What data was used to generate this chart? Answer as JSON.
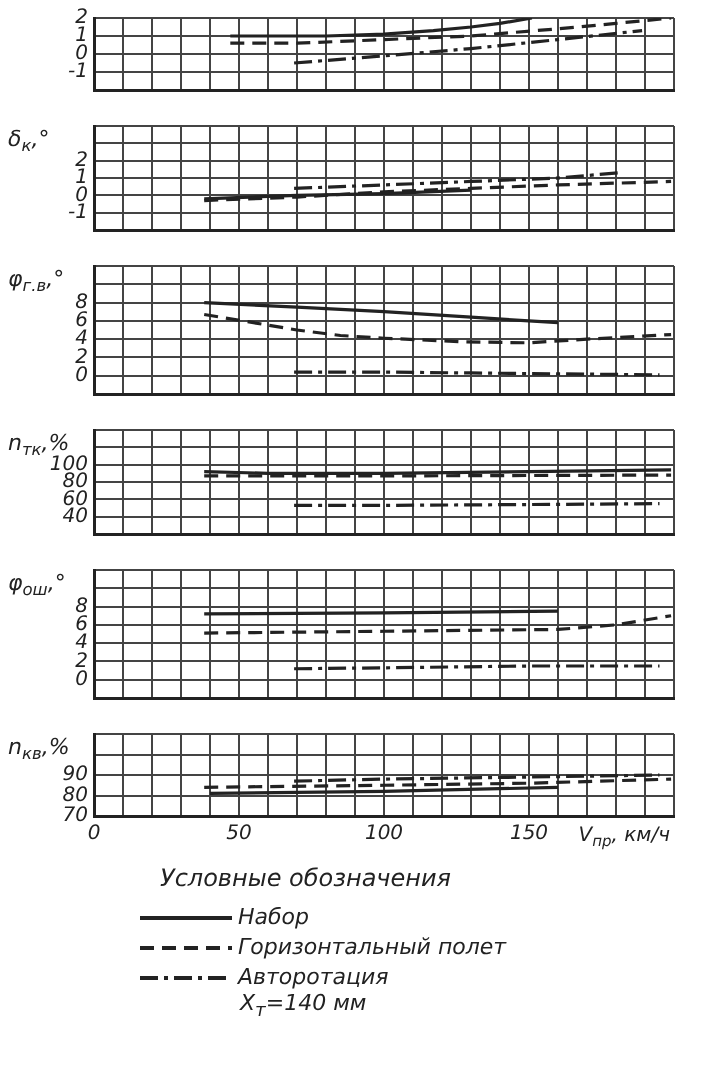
{
  "chart_data": [
    {
      "type": "line",
      "xlim": [
        0,
        200
      ],
      "xticks": [
        0,
        {
          "value": 10,
          "label": null
        },
        {
          "value": 20,
          "label": null
        },
        {
          "value": 30,
          "label": null
        },
        {
          "value": 40,
          "label": null
        },
        50,
        {
          "value": 60,
          "label": null
        },
        {
          "value": 70,
          "label": null
        },
        {
          "value": 80,
          "label": null
        },
        {
          "value": 90,
          "label": null
        },
        100,
        {
          "value": 110,
          "label": null
        },
        {
          "value": 120,
          "label": null
        },
        {
          "value": 130,
          "label": null
        },
        {
          "value": 140,
          "label": null
        },
        150,
        {
          "value": 160,
          "label": null
        },
        {
          "value": 170,
          "label": null
        },
        {
          "value": 180,
          "label": null
        },
        {
          "value": 190,
          "label": null
        },
        {
          "value": 200,
          "label": null
        }
      ],
      "ylim": [
        -2,
        2
      ],
      "yticks": [
        {
          "value": -2,
          "label": null
        },
        -1,
        0,
        1,
        2
      ],
      "grid": true,
      "legend": false,
      "marker": "none",
      "tick_labels": "y",
      "series": [
        {
          "color": "#222222",
          "line_style": "solid",
          "x": [
            47,
            60,
            80,
            100,
            117,
            130,
            140,
            151
          ],
          "values": [
            1.0,
            1.0,
            1.0,
            1.1,
            1.3,
            1.5,
            1.7,
            2.0
          ]
        },
        {
          "color": "#222222",
          "line_style": "dashed",
          "x": [
            47,
            70,
            100,
            130,
            160,
            180,
            199
          ],
          "values": [
            0.6,
            0.6,
            0.8,
            1.0,
            1.4,
            1.7,
            2.0
          ]
        },
        {
          "color": "#222222",
          "line_style": "dashdot",
          "x": [
            69,
            100,
            130,
            160,
            189
          ],
          "values": [
            -0.5,
            -0.1,
            0.3,
            0.8,
            1.3
          ]
        }
      ]
    },
    {
      "type": "line",
      "ylabel": "δ$_{к}$,°",
      "xlim": [
        0,
        200
      ],
      "xticks": [
        0,
        {
          "value": 10,
          "label": null
        },
        {
          "value": 20,
          "label": null
        },
        {
          "value": 30,
          "label": null
        },
        {
          "value": 40,
          "label": null
        },
        50,
        {
          "value": 60,
          "label": null
        },
        {
          "value": 70,
          "label": null
        },
        {
          "value": 80,
          "label": null
        },
        {
          "value": 90,
          "label": null
        },
        100,
        {
          "value": 110,
          "label": null
        },
        {
          "value": 120,
          "label": null
        },
        {
          "value": 130,
          "label": null
        },
        {
          "value": 140,
          "label": null
        },
        150,
        {
          "value": 160,
          "label": null
        },
        {
          "value": 170,
          "label": null
        },
        {
          "value": 180,
          "label": null
        },
        {
          "value": 190,
          "label": null
        },
        {
          "value": 200,
          "label": null
        }
      ],
      "ylim": [
        -2,
        4
      ],
      "yticks": [
        {
          "value": -2,
          "label": null
        },
        -1,
        0,
        1,
        2,
        {
          "value": 3,
          "label": null
        },
        {
          "value": 4,
          "label": null
        }
      ],
      "grid": true,
      "legend": false,
      "marker": "none",
      "tick_labels": "y",
      "series": [
        {
          "color": "#222222",
          "line_style": "solid",
          "x": [
            38,
            70,
            100,
            130
          ],
          "values": [
            -0.2,
            0.0,
            0.1,
            0.3
          ]
        },
        {
          "color": "#222222",
          "line_style": "dashed",
          "x": [
            38,
            70,
            100,
            130,
            160,
            199
          ],
          "values": [
            -0.3,
            -0.1,
            0.2,
            0.4,
            0.6,
            0.8
          ]
        },
        {
          "color": "#222222",
          "line_style": "dashdot",
          "x": [
            69,
            100,
            130,
            160,
            181
          ],
          "values": [
            0.4,
            0.6,
            0.8,
            1.0,
            1.3
          ]
        }
      ]
    },
    {
      "type": "line",
      "ylabel": "φ$_{г.в}$,°",
      "xlim": [
        0,
        200
      ],
      "xticks": [
        0,
        {
          "value": 10,
          "label": null
        },
        {
          "value": 20,
          "label": null
        },
        {
          "value": 30,
          "label": null
        },
        {
          "value": 40,
          "label": null
        },
        50,
        {
          "value": 60,
          "label": null
        },
        {
          "value": 70,
          "label": null
        },
        {
          "value": 80,
          "label": null
        },
        {
          "value": 90,
          "label": null
        },
        100,
        {
          "value": 110,
          "label": null
        },
        {
          "value": 120,
          "label": null
        },
        {
          "value": 130,
          "label": null
        },
        {
          "value": 140,
          "label": null
        },
        150,
        {
          "value": 160,
          "label": null
        },
        {
          "value": 170,
          "label": null
        },
        {
          "value": 180,
          "label": null
        },
        {
          "value": 190,
          "label": null
        },
        {
          "value": 200,
          "label": null
        }
      ],
      "ylim": [
        -2,
        12
      ],
      "yticks": [
        {
          "value": -2,
          "label": null
        },
        0,
        2,
        4,
        6,
        8,
        {
          "value": 10,
          "label": null
        },
        {
          "value": 12,
          "label": null
        }
      ],
      "grid": true,
      "legend": false,
      "marker": "none",
      "tick_labels": "y",
      "series": [
        {
          "color": "#222222",
          "line_style": "solid",
          "x": [
            38,
            70,
            100,
            130,
            160
          ],
          "values": [
            8.0,
            7.5,
            7.0,
            6.4,
            5.8
          ]
        },
        {
          "color": "#222222",
          "line_style": "dashed",
          "x": [
            38,
            55,
            70,
            85,
            100,
            128,
            150,
            170,
            199
          ],
          "values": [
            6.7,
            5.8,
            5.0,
            4.4,
            4.1,
            3.7,
            3.6,
            4.0,
            4.5
          ]
        },
        {
          "color": "#222222",
          "line_style": "dashdot",
          "x": [
            69,
            100,
            130,
            160,
            195
          ],
          "values": [
            0.4,
            0.4,
            0.3,
            0.2,
            0.1
          ]
        }
      ]
    },
    {
      "type": "line",
      "ylabel": "n$_{тк}$,%",
      "xlim": [
        0,
        200
      ],
      "xticks": [
        0,
        {
          "value": 10,
          "label": null
        },
        {
          "value": 20,
          "label": null
        },
        {
          "value": 30,
          "label": null
        },
        {
          "value": 40,
          "label": null
        },
        50,
        {
          "value": 60,
          "label": null
        },
        {
          "value": 70,
          "label": null
        },
        {
          "value": 80,
          "label": null
        },
        {
          "value": 90,
          "label": null
        },
        100,
        {
          "value": 110,
          "label": null
        },
        {
          "value": 120,
          "label": null
        },
        {
          "value": 130,
          "label": null
        },
        {
          "value": 140,
          "label": null
        },
        150,
        {
          "value": 160,
          "label": null
        },
        {
          "value": 170,
          "label": null
        },
        {
          "value": 180,
          "label": null
        },
        {
          "value": 190,
          "label": null
        },
        {
          "value": 200,
          "label": null
        }
      ],
      "ylim": [
        20,
        140
      ],
      "yticks": [
        {
          "value": 20,
          "label": null
        },
        40,
        60,
        80,
        100,
        {
          "value": 120,
          "label": null
        },
        {
          "value": 140,
          "label": null
        }
      ],
      "grid": true,
      "legend": false,
      "marker": "none",
      "tick_labels": "y",
      "series": [
        {
          "color": "#222222",
          "line_style": "solid",
          "x": [
            38,
            60,
            100,
            150,
            199
          ],
          "values": [
            92,
            90,
            90,
            92,
            94
          ]
        },
        {
          "color": "#222222",
          "line_style": "dashed",
          "x": [
            38,
            100,
            199
          ],
          "values": [
            87,
            87,
            88
          ]
        },
        {
          "color": "#222222",
          "line_style": "dashdot",
          "x": [
            69,
            100,
            150,
            195
          ],
          "values": [
            53,
            53,
            54,
            55
          ]
        }
      ]
    },
    {
      "type": "line",
      "ylabel": "φ$_{ош}$,°",
      "xlim": [
        0,
        200
      ],
      "xticks": [
        0,
        {
          "value": 10,
          "label": null
        },
        {
          "value": 20,
          "label": null
        },
        {
          "value": 30,
          "label": null
        },
        {
          "value": 40,
          "label": null
        },
        50,
        {
          "value": 60,
          "label": null
        },
        {
          "value": 70,
          "label": null
        },
        {
          "value": 80,
          "label": null
        },
        {
          "value": 90,
          "label": null
        },
        100,
        {
          "value": 110,
          "label": null
        },
        {
          "value": 120,
          "label": null
        },
        {
          "value": 130,
          "label": null
        },
        {
          "value": 140,
          "label": null
        },
        150,
        {
          "value": 160,
          "label": null
        },
        {
          "value": 170,
          "label": null
        },
        {
          "value": 180,
          "label": null
        },
        {
          "value": 190,
          "label": null
        },
        {
          "value": 200,
          "label": null
        }
      ],
      "ylim": [
        -2,
        12
      ],
      "yticks": [
        {
          "value": -2,
          "label": null
        },
        0,
        2,
        4,
        6,
        8,
        {
          "value": 10,
          "label": null
        },
        {
          "value": 12,
          "label": null
        }
      ],
      "grid": true,
      "legend": false,
      "marker": "none",
      "tick_labels": "y",
      "series": [
        {
          "color": "#222222",
          "line_style": "solid",
          "x": [
            38,
            100,
            160
          ],
          "values": [
            7.2,
            7.3,
            7.5
          ]
        },
        {
          "color": "#222222",
          "line_style": "dashed",
          "x": [
            38,
            100,
            160,
            180,
            199
          ],
          "values": [
            5.1,
            5.3,
            5.5,
            6.0,
            7.0
          ]
        },
        {
          "color": "#222222",
          "line_style": "dashdot",
          "x": [
            69,
            100,
            150,
            195
          ],
          "values": [
            1.2,
            1.3,
            1.5,
            1.5
          ]
        }
      ]
    },
    {
      "type": "line",
      "ylabel": "n$_{кв}$,%",
      "xlabel": "V$_{пр}$, км/ч",
      "legend_title": "Условные обозначения",
      "annotations": [
        "X$_{т}$=140 мм"
      ],
      "xlim": [
        0,
        200
      ],
      "xticks": [
        0,
        {
          "value": 10,
          "label": null
        },
        {
          "value": 20,
          "label": null
        },
        {
          "value": 30,
          "label": null
        },
        {
          "value": 40,
          "label": null
        },
        50,
        {
          "value": 60,
          "label": null
        },
        {
          "value": 70,
          "label": null
        },
        {
          "value": 80,
          "label": null
        },
        {
          "value": 90,
          "label": null
        },
        100,
        {
          "value": 110,
          "label": null
        },
        {
          "value": 120,
          "label": null
        },
        {
          "value": 130,
          "label": null
        },
        {
          "value": 140,
          "label": null
        },
        150,
        {
          "value": 160,
          "label": null
        },
        {
          "value": 170,
          "label": null
        },
        {
          "value": 180,
          "label": null
        },
        {
          "value": 190,
          "label": null
        },
        {
          "value": 200,
          "label": null
        }
      ],
      "ylim": [
        70,
        110
      ],
      "yticks": [
        70,
        80,
        90,
        {
          "value": 100,
          "label": null
        },
        {
          "value": 110,
          "label": null
        }
      ],
      "grid": true,
      "legend": "bottom",
      "marker": "none",
      "series": [
        {
          "name": "Набор",
          "color": "#222222",
          "line_style": "solid",
          "x": [
            40,
            100,
            160
          ],
          "values": [
            81,
            82,
            84
          ]
        },
        {
          "name": "Горизонтальный полет",
          "color": "#222222",
          "line_style": "dashed",
          "x": [
            38,
            100,
            150,
            199
          ],
          "values": [
            84,
            85,
            86,
            88
          ]
        },
        {
          "name": "Авторотация",
          "color": "#222222",
          "line_style": "dashdot",
          "x": [
            69,
            100,
            150,
            195
          ],
          "values": [
            87,
            88,
            89,
            90
          ]
        }
      ]
    }
  ]
}
